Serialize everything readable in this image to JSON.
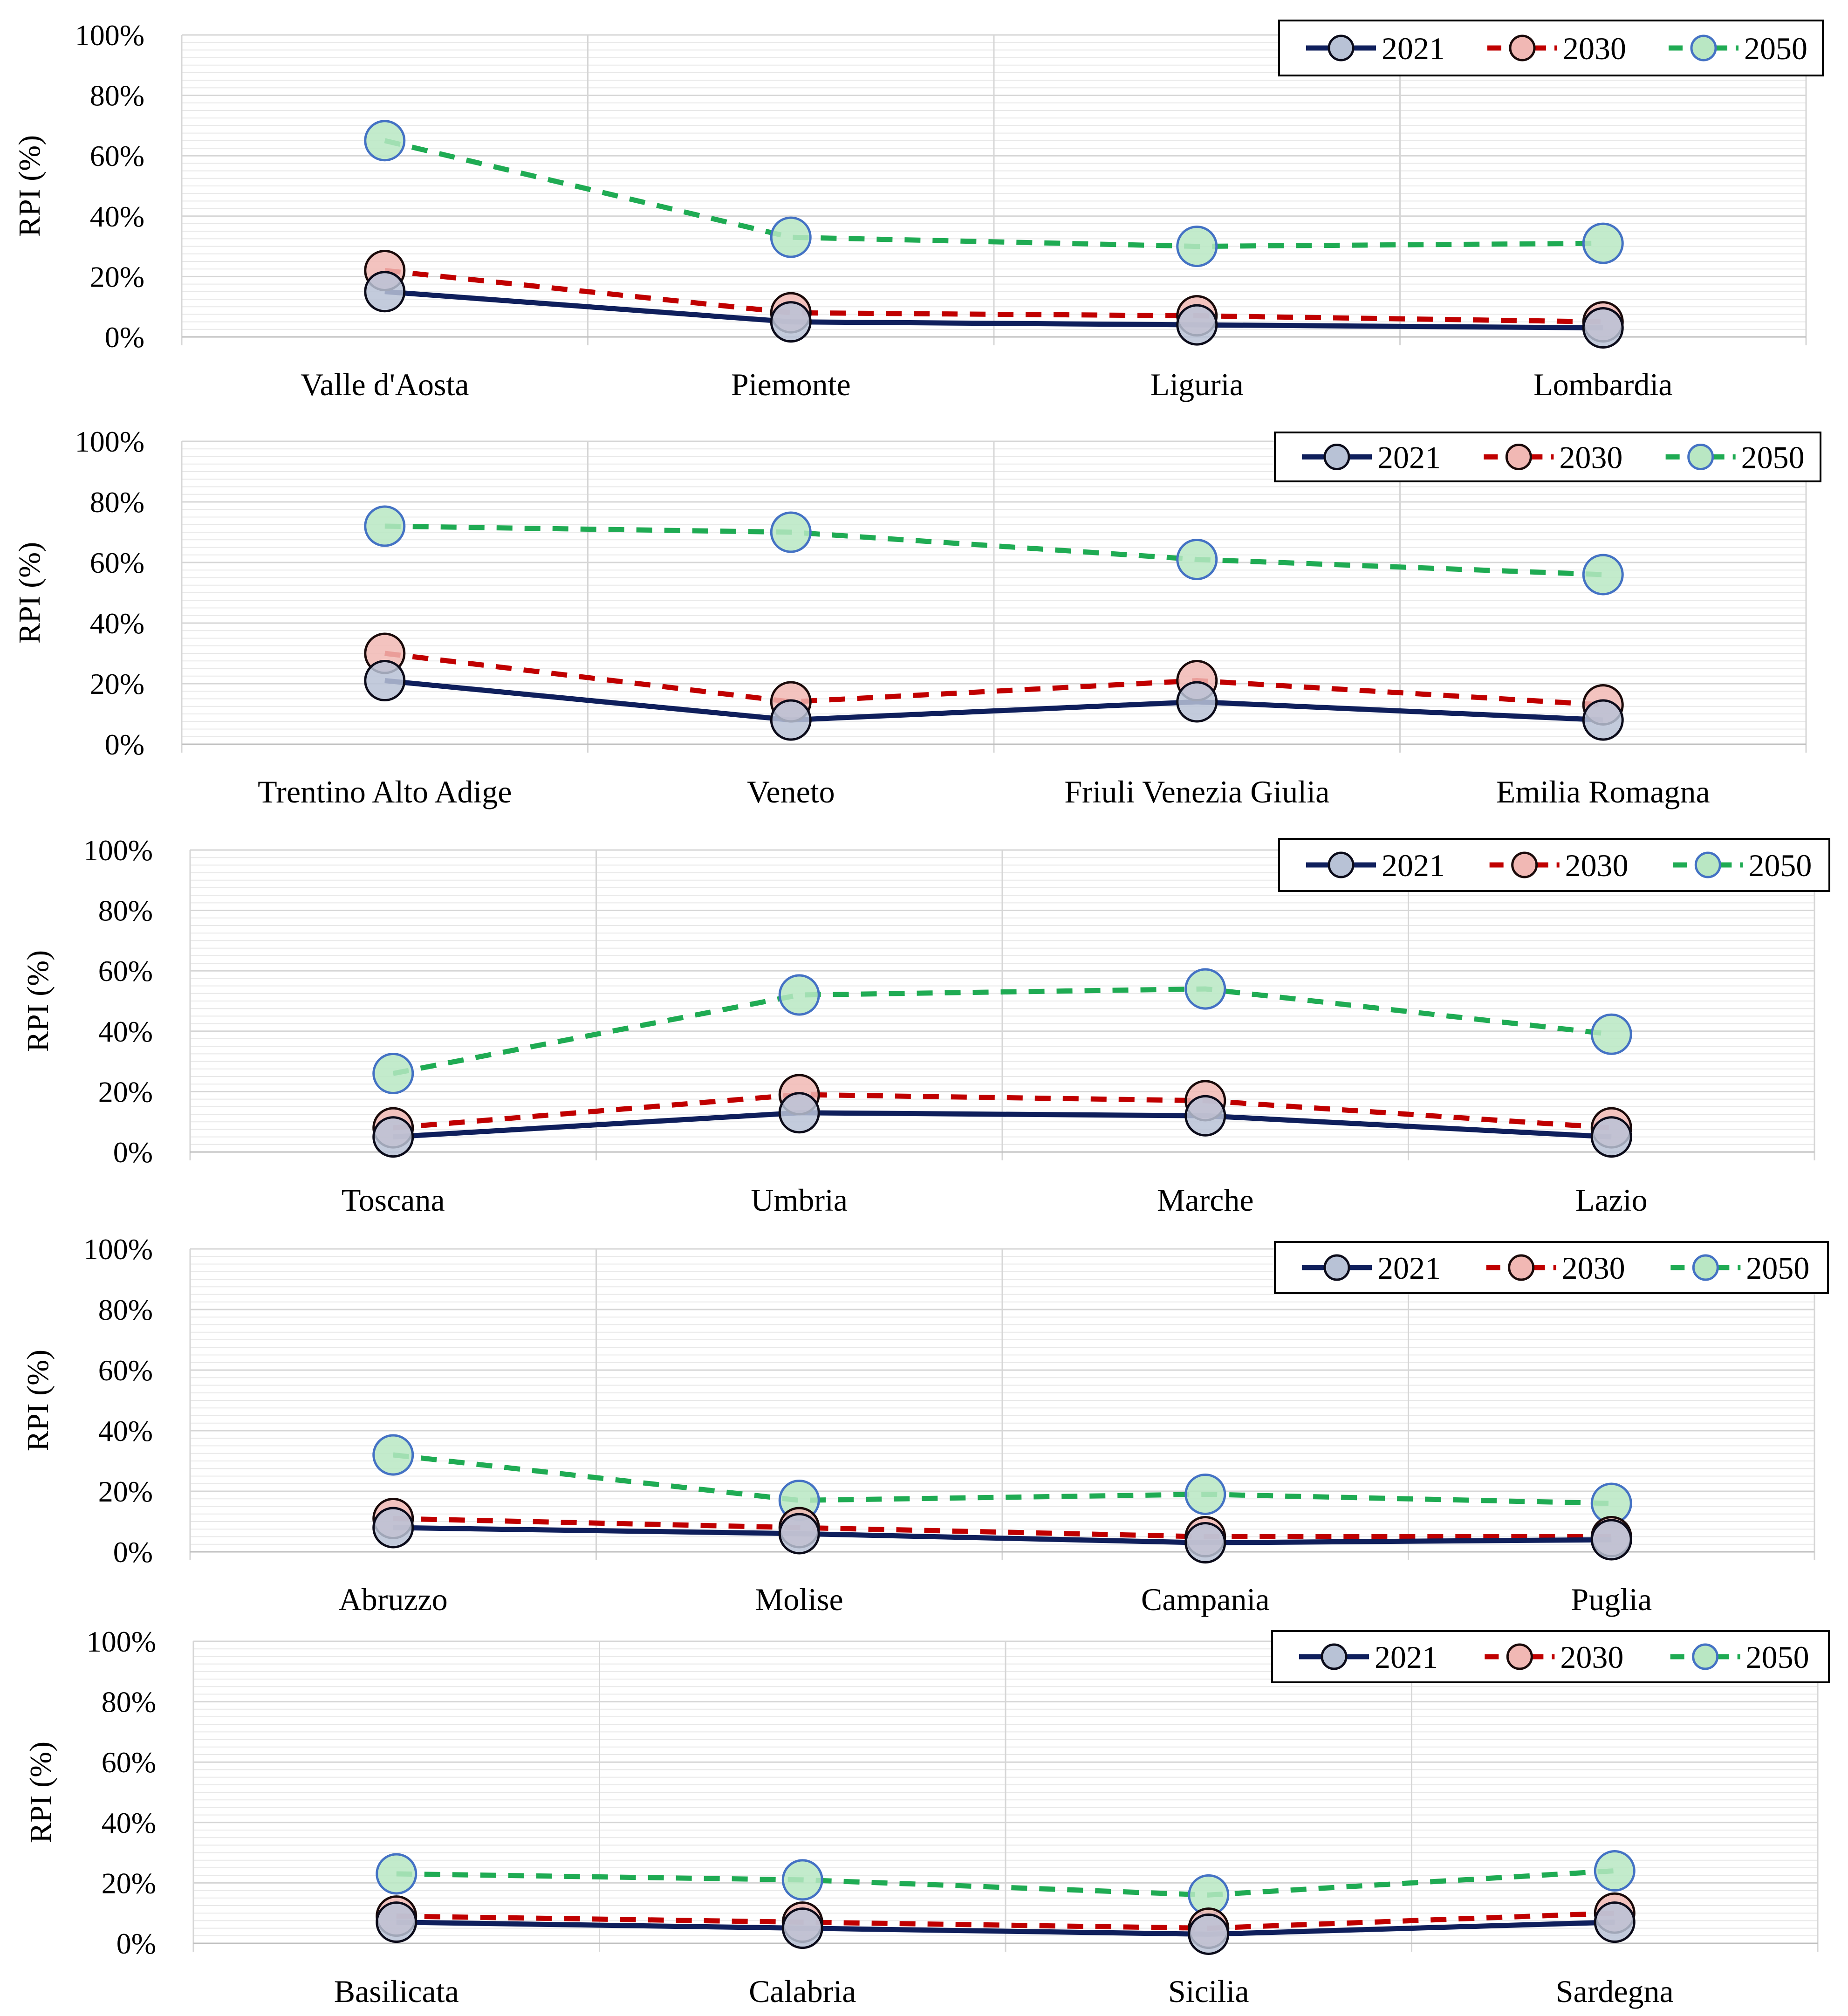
{
  "colors": {
    "2021": {
      "line": "#0f1f5c",
      "fill": "#b8c2d6"
    },
    "2030": {
      "line": "#c00000",
      "fill": "#f1b8b4"
    },
    "2050": {
      "line": "#1fab53",
      "fill": "#b9e7c3",
      "marker_edge": "#4472c4"
    }
  },
  "chart_data": [
    {
      "type": "line",
      "ylabel": "RPI (%)",
      "ylim": [
        0,
        100
      ],
      "yticks": [
        "0%",
        "20%",
        "40%",
        "60%",
        "80%",
        "100%"
      ],
      "legend": "top-right",
      "categories": [
        "Valle d'Aosta",
        "Piemonte",
        "Liguria",
        "Lombardia"
      ],
      "series": [
        {
          "name": "2021",
          "values": [
            15,
            5,
            4,
            3
          ]
        },
        {
          "name": "2030",
          "values": [
            22,
            8,
            7,
            5
          ]
        },
        {
          "name": "2050",
          "values": [
            65,
            33,
            30,
            31
          ]
        }
      ]
    },
    {
      "type": "line",
      "ylabel": "RPI (%)",
      "ylim": [
        0,
        100
      ],
      "yticks": [
        "0%",
        "20%",
        "40%",
        "60%",
        "80%",
        "100%"
      ],
      "legend": "top-right",
      "categories": [
        "Trentino Alto Adige",
        "Veneto",
        "Friuli Venezia Giulia",
        "Emilia Romagna"
      ],
      "series": [
        {
          "name": "2021",
          "values": [
            21,
            8,
            14,
            8
          ]
        },
        {
          "name": "2030",
          "values": [
            30,
            14,
            21,
            13
          ]
        },
        {
          "name": "2050",
          "values": [
            72,
            70,
            61,
            56
          ]
        }
      ]
    },
    {
      "type": "line",
      "ylabel": "RPI (%)",
      "ylim": [
        0,
        100
      ],
      "yticks": [
        "0%",
        "20%",
        "40%",
        "60%",
        "80%",
        "100%"
      ],
      "legend": "top-right",
      "categories": [
        "Toscana",
        "Umbria",
        "Marche",
        "Lazio"
      ],
      "series": [
        {
          "name": "2021",
          "values": [
            5,
            13,
            12,
            5
          ]
        },
        {
          "name": "2030",
          "values": [
            8,
            19,
            17,
            8
          ]
        },
        {
          "name": "2050",
          "values": [
            26,
            52,
            54,
            39
          ]
        }
      ]
    },
    {
      "type": "line",
      "ylabel": "RPI (%)",
      "ylim": [
        0,
        100
      ],
      "yticks": [
        "0%",
        "20%",
        "40%",
        "60%",
        "80%",
        "100%"
      ],
      "legend": "top-right",
      "categories": [
        "Abruzzo",
        "Molise",
        "Campania",
        "Puglia"
      ],
      "series": [
        {
          "name": "2021",
          "values": [
            8,
            6,
            3,
            4
          ]
        },
        {
          "name": "2030",
          "values": [
            11,
            8,
            5,
            5
          ]
        },
        {
          "name": "2050",
          "values": [
            32,
            17,
            19,
            16
          ]
        }
      ]
    },
    {
      "type": "line",
      "ylabel": "RPI (%)",
      "ylim": [
        0,
        100
      ],
      "yticks": [
        "0%",
        "20%",
        "40%",
        "60%",
        "80%",
        "100%"
      ],
      "legend": "top-right",
      "categories": [
        "Basilicata",
        "Calabria",
        "Sicilia",
        "Sardegna"
      ],
      "series": [
        {
          "name": "2021",
          "values": [
            7,
            5,
            3,
            7
          ]
        },
        {
          "name": "2030",
          "values": [
            9,
            7,
            5,
            10
          ]
        },
        {
          "name": "2050",
          "values": [
            23,
            21,
            16,
            24
          ]
        }
      ]
    }
  ]
}
